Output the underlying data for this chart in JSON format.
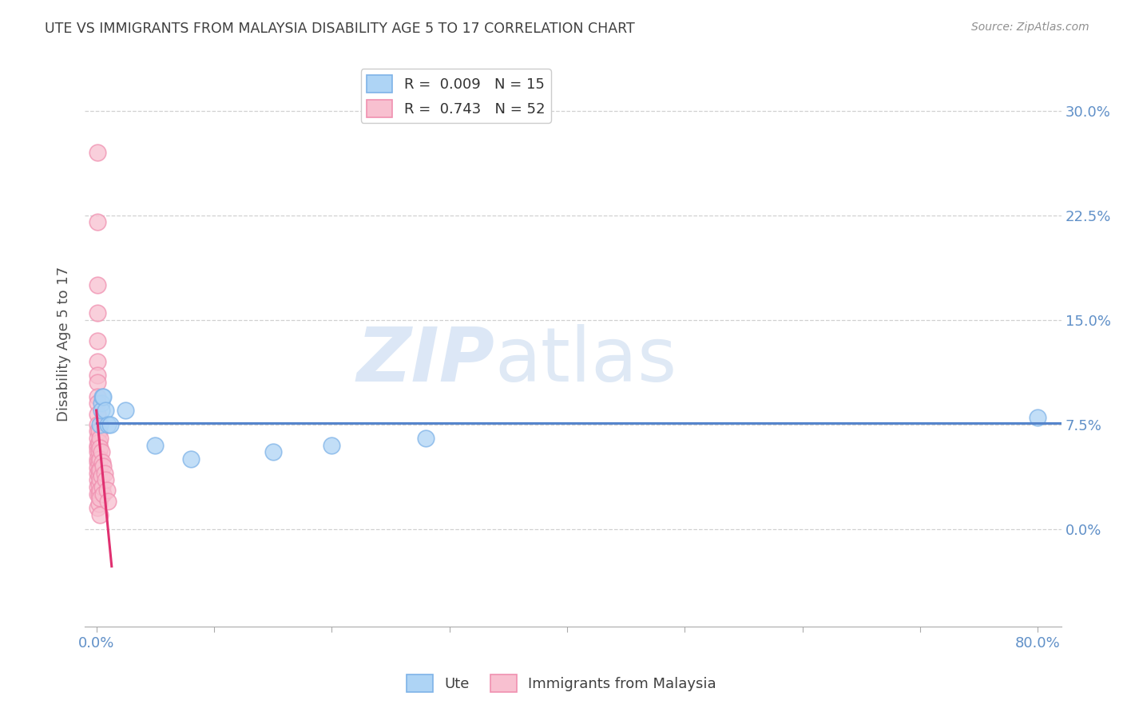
{
  "title": "UTE VS IMMIGRANTS FROM MALAYSIA DISABILITY AGE 5 TO 17 CORRELATION CHART",
  "source": "Source: ZipAtlas.com",
  "ylabel": "Disability Age 5 to 17",
  "xlim": [
    -0.01,
    0.82
  ],
  "ylim": [
    -0.07,
    0.335
  ],
  "yticks": [
    0.0,
    0.075,
    0.15,
    0.225,
    0.3
  ],
  "ytick_labels": [
    "0.0%",
    "7.5%",
    "15.0%",
    "22.5%",
    "30.0%"
  ],
  "xtick_positions": [
    0.0,
    0.1,
    0.2,
    0.3,
    0.4,
    0.5,
    0.6,
    0.7,
    0.8
  ],
  "xtick_label_left": "0.0%",
  "xtick_label_right": "80.0%",
  "blue_R": 0.009,
  "blue_N": 15,
  "pink_R": 0.743,
  "pink_N": 52,
  "blue_color": "#7EB3E8",
  "blue_fill": "#AED4F5",
  "pink_color": "#F090B0",
  "pink_fill": "#F8C0D0",
  "blue_scatter_x": [
    0.003,
    0.004,
    0.004,
    0.005,
    0.006,
    0.008,
    0.01,
    0.012,
    0.025,
    0.05,
    0.08,
    0.15,
    0.2,
    0.28,
    0.8
  ],
  "blue_scatter_y": [
    0.075,
    0.09,
    0.085,
    0.095,
    0.095,
    0.085,
    0.075,
    0.075,
    0.085,
    0.06,
    0.05,
    0.055,
    0.06,
    0.065,
    0.08
  ],
  "pink_scatter_x": [
    0.001,
    0.001,
    0.001,
    0.001,
    0.001,
    0.001,
    0.001,
    0.001,
    0.001,
    0.001,
    0.001,
    0.001,
    0.001,
    0.001,
    0.001,
    0.001,
    0.001,
    0.001,
    0.001,
    0.001,
    0.001,
    0.001,
    0.001,
    0.001,
    0.001,
    0.002,
    0.002,
    0.002,
    0.002,
    0.002,
    0.002,
    0.002,
    0.002,
    0.002,
    0.003,
    0.003,
    0.003,
    0.003,
    0.003,
    0.003,
    0.003,
    0.003,
    0.004,
    0.004,
    0.005,
    0.005,
    0.006,
    0.006,
    0.007,
    0.008,
    0.009,
    0.01
  ],
  "pink_scatter_y": [
    0.27,
    0.22,
    0.175,
    0.155,
    0.135,
    0.12,
    0.11,
    0.105,
    0.095,
    0.09,
    0.082,
    0.075,
    0.07,
    0.065,
    0.06,
    0.058,
    0.055,
    0.05,
    0.048,
    0.044,
    0.04,
    0.035,
    0.03,
    0.025,
    0.015,
    0.07,
    0.062,
    0.055,
    0.048,
    0.042,
    0.038,
    0.032,
    0.025,
    0.018,
    0.065,
    0.058,
    0.05,
    0.042,
    0.035,
    0.028,
    0.022,
    0.01,
    0.055,
    0.038,
    0.048,
    0.03,
    0.045,
    0.025,
    0.04,
    0.035,
    0.028,
    0.02
  ],
  "pink_trendline_x": [
    0.0,
    0.013
  ],
  "blue_trendline_x": [
    0.0,
    0.82
  ],
  "blue_trendline_y": [
    0.076,
    0.076
  ],
  "watermark_zip": "ZIP",
  "watermark_atlas": "atlas",
  "background_color": "#ffffff",
  "grid_color": "#cccccc",
  "title_color": "#404040",
  "axis_label_color": "#505050",
  "tick_color": "#6090C8",
  "legend_label1": "Ute",
  "legend_label2": "Immigrants from Malaysia"
}
